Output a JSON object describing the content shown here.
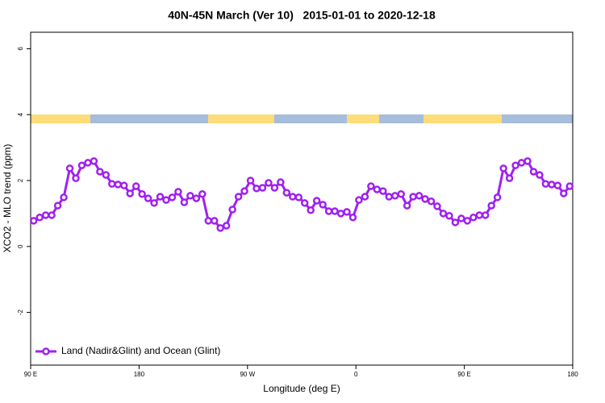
{
  "chart_data": {
    "type": "line",
    "title": "40N-45N March (Ver 10)   2015-01-01 to 2020-12-18",
    "x_label": "Longitude (deg E)",
    "y_label": "XCO2 - MLO trend (ppm)",
    "xlim": [
      90,
      540
    ],
    "xticks": [
      {
        "value": 90,
        "label": "90 E"
      },
      180,
      {
        "value": 270,
        "label": "90 W"
      },
      {
        "value": 360,
        "label": "0"
      },
      {
        "value": 450,
        "label": "90 E"
      },
      {
        "value": 540,
        "label": "180"
      }
    ],
    "ylim": [
      -3.6,
      6.5
    ],
    "yticks": [
      -2,
      0,
      2,
      4,
      6
    ],
    "legend": "bottom-left",
    "x": [
      92.5,
      97.5,
      102.5,
      107.5,
      112.5,
      117.5,
      122.5,
      127.5,
      132.5,
      137.5,
      142.5,
      147.5,
      152.5,
      157.5,
      162.5,
      167.5,
      172.5,
      177.5,
      182.5,
      187.5,
      192.5,
      197.5,
      202.5,
      207.5,
      212.5,
      217.5,
      222.5,
      227.5,
      232.5,
      237.5,
      242.5,
      247.5,
      252.5,
      257.5,
      262.5,
      267.5,
      272.5,
      277.5,
      282.5,
      287.5,
      292.5,
      297.5,
      302.5,
      307.5,
      312.5,
      317.5,
      322.5,
      327.5,
      332.5,
      337.5,
      342.5,
      347.5,
      352.5,
      357.5,
      362.5,
      367.5,
      372.5,
      377.5,
      382.5,
      387.5,
      392.5,
      397.5,
      402.5,
      407.5,
      412.5,
      417.5,
      422.5,
      427.5,
      432.5,
      437.5,
      442.5,
      447.5,
      452.5,
      457.5,
      462.5,
      467.5,
      472.5,
      477.5,
      482.5,
      487.5,
      492.5,
      497.5,
      502.5,
      507.5,
      512.5,
      517.5,
      522.5,
      527.5,
      532.5,
      537.5
    ],
    "series": [
      {
        "name": "Land (Nadir&Glint) and Ocean (Glint)",
        "color": "#a020f0",
        "values": [
          0.78,
          0.88,
          0.95,
          0.95,
          1.24,
          1.49,
          2.37,
          2.07,
          2.46,
          2.54,
          2.59,
          2.27,
          2.17,
          1.9,
          1.88,
          1.85,
          1.61,
          1.83,
          1.59,
          1.46,
          1.32,
          1.51,
          1.41,
          1.49,
          1.66,
          1.34,
          1.54,
          1.46,
          1.59,
          0.78,
          0.78,
          0.56,
          0.63,
          1.12,
          1.51,
          1.68,
          2.0,
          1.76,
          1.78,
          1.93,
          1.78,
          1.95,
          1.63,
          1.51,
          1.49,
          1.32,
          1.1,
          1.39,
          1.27,
          1.07,
          1.07,
          1.0,
          1.05,
          0.88,
          1.41,
          1.51,
          1.83,
          1.73,
          1.68,
          1.51,
          1.54,
          1.59,
          1.24,
          1.51,
          1.54,
          1.44,
          1.37,
          1.22,
          1.0,
          0.93,
          0.73,
          0.85,
          0.78,
          0.88,
          0.95,
          0.95,
          1.24,
          1.49,
          2.37,
          2.07,
          2.46,
          2.54,
          2.59,
          2.27,
          2.17,
          1.9,
          1.88,
          1.85,
          1.61,
          1.83
        ]
      }
    ]
  }
}
